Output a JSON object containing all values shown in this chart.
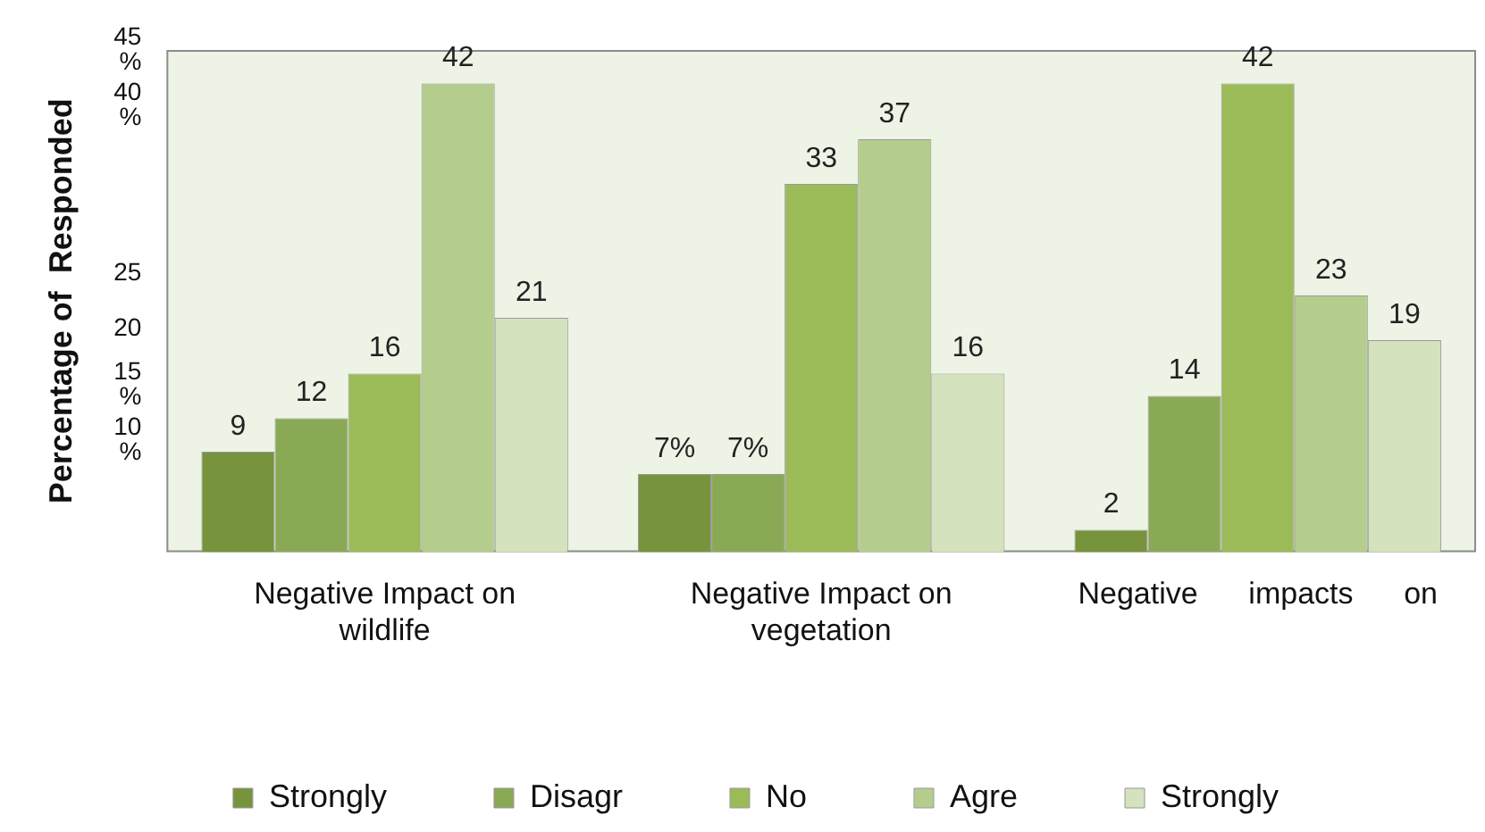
{
  "chart_data": {
    "type": "bar",
    "ylabel": "Percentage of  Responded",
    "categories": [
      "Negative Impact on wildlife",
      "Negative Impact on vegetation",
      "Negative      impacts      on"
    ],
    "series": [
      {
        "name": "Strongly",
        "color": "#77933c",
        "values": [
          9,
          7,
          2
        ],
        "value_labels": [
          "9",
          "7%",
          "2"
        ]
      },
      {
        "name": "Disagr",
        "color": "#8aa955",
        "values": [
          12,
          7,
          14
        ],
        "value_labels": [
          "12",
          "7%",
          "14"
        ]
      },
      {
        "name": "No",
        "color": "#9bbb59",
        "values": [
          16,
          33,
          42
        ],
        "value_labels": [
          "16",
          "33",
          "42"
        ]
      },
      {
        "name": "Agre",
        "color": "#b5cd8c",
        "values": [
          42,
          37,
          23
        ],
        "value_labels": [
          "42",
          "37",
          "23"
        ]
      },
      {
        "name": "Strongly",
        "color": "#d4e2bd",
        "values": [
          21,
          16,
          19
        ],
        "value_labels": [
          "21",
          "16",
          "19"
        ]
      }
    ],
    "ylim": [
      0,
      45
    ],
    "yticks": [
      {
        "value": 45,
        "label": "45 %"
      },
      {
        "value": 40,
        "label": "40 %"
      },
      25,
      20,
      {
        "value": 15,
        "label": "15 %"
      },
      {
        "value": 10,
        "label": "10 %"
      }
    ],
    "grid": false,
    "legend": "bottom"
  }
}
